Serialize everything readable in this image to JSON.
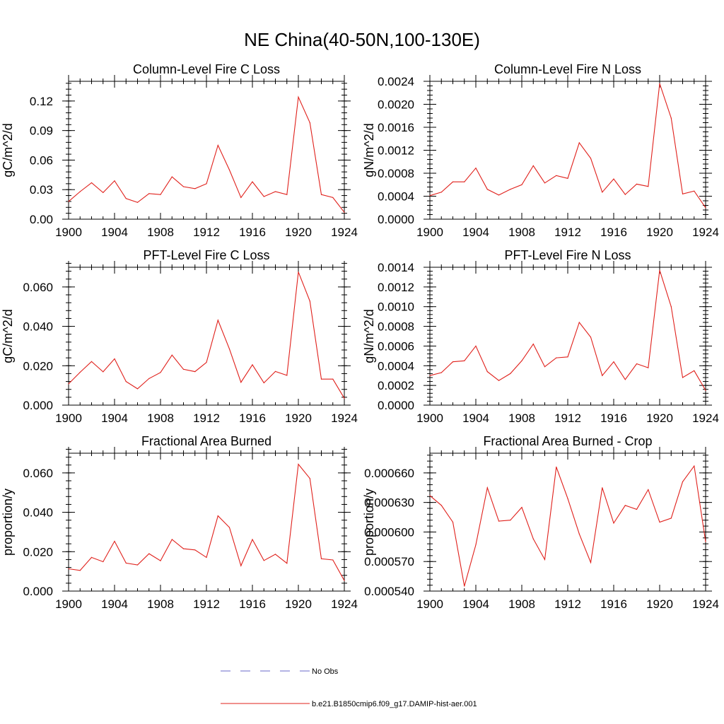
{
  "figure_title": "NE China(40-50N,100-130E)",
  "legend": [
    {
      "label": "No Obs",
      "style": "dashed",
      "color": "#6a6ac8"
    },
    {
      "label": "b.e21.B1850cmip6.f09_g17.DAMIP-hist-aer.001",
      "style": "solid",
      "color": "#e0201b"
    }
  ],
  "chart_data": [
    {
      "type": "line",
      "title": "Column-Level Fire C Loss",
      "ylabel": "gC/m^2/d",
      "xlim": [
        1900,
        1924
      ],
      "ylim": [
        0,
        0.14
      ],
      "xticks": [
        1900,
        1904,
        1908,
        1912,
        1916,
        1920,
        1924
      ],
      "yticks": [
        0.0,
        0.03,
        0.06,
        0.09,
        0.12
      ],
      "ytick_labels": [
        "0.00",
        "0.03",
        "0.06",
        "0.09",
        "0.12"
      ],
      "x": [
        1900,
        1901,
        1902,
        1903,
        1904,
        1905,
        1906,
        1907,
        1908,
        1909,
        1910,
        1911,
        1912,
        1913,
        1914,
        1915,
        1916,
        1917,
        1918,
        1919,
        1920,
        1921,
        1922,
        1923,
        1924
      ],
      "series": [
        {
          "color": "#e0201b",
          "values": [
            0.018,
            0.028,
            0.037,
            0.027,
            0.039,
            0.021,
            0.017,
            0.026,
            0.025,
            0.043,
            0.033,
            0.031,
            0.036,
            0.075,
            0.05,
            0.022,
            0.038,
            0.023,
            0.028,
            0.025,
            0.124,
            0.098,
            0.025,
            0.022,
            0.007
          ]
        }
      ]
    },
    {
      "type": "line",
      "title": "Column-Level Fire N Loss",
      "ylabel": "gN/m^2/d",
      "xlim": [
        1900,
        1924
      ],
      "ylim": [
        0,
        0.0024
      ],
      "xticks": [
        1900,
        1904,
        1908,
        1912,
        1916,
        1920,
        1924
      ],
      "yticks": [
        0.0,
        0.0004,
        0.0008,
        0.0012,
        0.0016,
        0.002,
        0.0024
      ],
      "ytick_labels": [
        "0.0000",
        "0.0004",
        "0.0008",
        "0.0012",
        "0.0016",
        "0.0020",
        "0.0024"
      ],
      "x": [
        1900,
        1901,
        1902,
        1903,
        1904,
        1905,
        1906,
        1907,
        1908,
        1909,
        1910,
        1911,
        1912,
        1913,
        1914,
        1915,
        1916,
        1917,
        1918,
        1919,
        1920,
        1921,
        1922,
        1923,
        1924
      ],
      "series": [
        {
          "color": "#e0201b",
          "values": [
            0.00041,
            0.00047,
            0.00065,
            0.00065,
            0.00089,
            0.00052,
            0.00042,
            0.00052,
            0.0006,
            0.00093,
            0.00063,
            0.00076,
            0.00071,
            0.00133,
            0.00106,
            0.00047,
            0.0007,
            0.00043,
            0.00061,
            0.00057,
            0.00236,
            0.00176,
            0.00044,
            0.00049,
            0.0002
          ]
        }
      ]
    },
    {
      "type": "line",
      "title": "PFT-Level Fire C Loss",
      "ylabel": "gC/m^2/d",
      "xlim": [
        1900,
        1924
      ],
      "ylim": [
        0,
        0.07
      ],
      "xticks": [
        1900,
        1904,
        1908,
        1912,
        1916,
        1920,
        1924
      ],
      "yticks": [
        0.0,
        0.02,
        0.04,
        0.06
      ],
      "ytick_labels": [
        "0.000",
        "0.020",
        "0.040",
        "0.060"
      ],
      "x": [
        1900,
        1901,
        1902,
        1903,
        1904,
        1905,
        1906,
        1907,
        1908,
        1909,
        1910,
        1911,
        1912,
        1913,
        1914,
        1915,
        1916,
        1917,
        1918,
        1919,
        1920,
        1921,
        1922,
        1923,
        1924
      ],
      "series": [
        {
          "color": "#e0201b",
          "values": [
            0.0108,
            0.0167,
            0.0221,
            0.0169,
            0.0235,
            0.012,
            0.0083,
            0.0135,
            0.0166,
            0.0254,
            0.0182,
            0.017,
            0.0217,
            0.0431,
            0.0285,
            0.0116,
            0.0205,
            0.0113,
            0.0171,
            0.0151,
            0.0676,
            0.0528,
            0.0132,
            0.0132,
            0.0035
          ]
        }
      ]
    },
    {
      "type": "line",
      "title": "PFT-Level Fire N Loss",
      "ylabel": "gN/m^2/d",
      "xlim": [
        1900,
        1924
      ],
      "ylim": [
        0,
        0.0014
      ],
      "xticks": [
        1900,
        1904,
        1908,
        1912,
        1916,
        1920,
        1924
      ],
      "yticks": [
        0.0,
        0.0002,
        0.0004,
        0.0006,
        0.0008,
        0.001,
        0.0012,
        0.0014
      ],
      "ytick_labels": [
        "0.0000",
        "0.0002",
        "0.0004",
        "0.0006",
        "0.0008",
        "0.0010",
        "0.0012",
        "0.0014"
      ],
      "x": [
        1900,
        1901,
        1902,
        1903,
        1904,
        1905,
        1906,
        1907,
        1908,
        1909,
        1910,
        1911,
        1912,
        1913,
        1914,
        1915,
        1916,
        1917,
        1918,
        1919,
        1920,
        1921,
        1922,
        1923,
        1924
      ],
      "series": [
        {
          "color": "#e0201b",
          "values": [
            0.0003,
            0.00033,
            0.00044,
            0.00045,
            0.0006,
            0.00034,
            0.00025,
            0.00032,
            0.00045,
            0.00062,
            0.00039,
            0.00048,
            0.00049,
            0.00084,
            0.00069,
            0.0003,
            0.00044,
            0.00026,
            0.00042,
            0.00038,
            0.00137,
            0.001,
            0.00028,
            0.00035,
            0.00015
          ]
        }
      ]
    },
    {
      "type": "line",
      "title": "Fractional Area Burned",
      "ylabel": "proportion/y",
      "xlim": [
        1900,
        1924
      ],
      "ylim": [
        0,
        0.07
      ],
      "xticks": [
        1900,
        1904,
        1908,
        1912,
        1916,
        1920,
        1924
      ],
      "yticks": [
        0.0,
        0.02,
        0.04,
        0.06
      ],
      "ytick_labels": [
        "0.000",
        "0.020",
        "0.040",
        "0.060"
      ],
      "x": [
        1900,
        1901,
        1902,
        1903,
        1904,
        1905,
        1906,
        1907,
        1908,
        1909,
        1910,
        1911,
        1912,
        1913,
        1914,
        1915,
        1916,
        1917,
        1918,
        1919,
        1920,
        1921,
        1922,
        1923,
        1924
      ],
      "series": [
        {
          "color": "#e0201b",
          "values": [
            0.0113,
            0.0105,
            0.0171,
            0.0149,
            0.0253,
            0.0142,
            0.0133,
            0.019,
            0.0154,
            0.0262,
            0.0215,
            0.0209,
            0.0171,
            0.0382,
            0.0323,
            0.0129,
            0.0262,
            0.0155,
            0.0187,
            0.0141,
            0.0644,
            0.0572,
            0.0164,
            0.0158,
            0.0053
          ]
        }
      ]
    },
    {
      "type": "line",
      "title": "Fractional Area Burned - Crop",
      "ylabel": "proportion/y",
      "xlim": [
        1900,
        1924
      ],
      "ylim": [
        0.00054,
        0.00068
      ],
      "xticks": [
        1900,
        1904,
        1908,
        1912,
        1916,
        1920,
        1924
      ],
      "yticks": [
        0.00054,
        0.00057,
        0.0006,
        0.00063,
        0.00066
      ],
      "ytick_labels": [
        "0.000540",
        "0.000570",
        "0.000600",
        "0.000630",
        "0.000660"
      ],
      "x": [
        1900,
        1901,
        1902,
        1903,
        1904,
        1905,
        1906,
        1907,
        1908,
        1909,
        1910,
        1911,
        1912,
        1913,
        1914,
        1915,
        1916,
        1917,
        1918,
        1919,
        1920,
        1921,
        1922,
        1923,
        1924
      ],
      "series": [
        {
          "color": "#e0201b",
          "values": [
            0.000637,
            0.000627,
            0.00061,
            0.000545,
            0.000587,
            0.000645,
            0.000611,
            0.000612,
            0.000625,
            0.000593,
            0.000572,
            0.000666,
            0.000634,
            0.000598,
            0.000569,
            0.000645,
            0.000609,
            0.000627,
            0.000623,
            0.000643,
            0.00061,
            0.000614,
            0.000651,
            0.000667,
            0.00059
          ]
        }
      ]
    }
  ]
}
